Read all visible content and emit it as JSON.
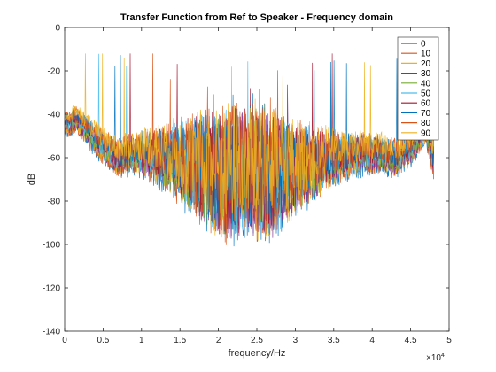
{
  "chart_data": {
    "type": "line",
    "title": "Transfer Function from Ref to Speaker - Frequency domain",
    "xlabel": "frequency/Hz",
    "ylabel": "dB",
    "x_exponent_label": "×10",
    "x_exponent_power": "4",
    "xlim": [
      0,
      50000
    ],
    "ylim": [
      -140,
      0
    ],
    "xticks": [
      0,
      5000,
      10000,
      15000,
      20000,
      25000,
      30000,
      35000,
      40000,
      45000,
      50000
    ],
    "xtick_labels": [
      "0",
      "0.5",
      "1",
      "1.5",
      "2",
      "2.5",
      "3",
      "3.5",
      "4",
      "4.5",
      "5"
    ],
    "yticks": [
      0,
      -20,
      -40,
      -60,
      -80,
      -100,
      -120,
      -140
    ],
    "ytick_labels": [
      "0",
      "-20",
      "-40",
      "-60",
      "-80",
      "-100",
      "-120",
      "-140"
    ],
    "grid": false,
    "legend_position": "top-right",
    "series": [
      {
        "name": "0",
        "color": "#0072BD"
      },
      {
        "name": "10",
        "color": "#D95319"
      },
      {
        "name": "20",
        "color": "#EDB120"
      },
      {
        "name": "30",
        "color": "#7E2F8E"
      },
      {
        "name": "40",
        "color": "#77AC30"
      },
      {
        "name": "50",
        "color": "#4DBEEE"
      },
      {
        "name": "60",
        "color": "#A2142F"
      },
      {
        "name": "70",
        "color": "#0072BD"
      },
      {
        "name": "80",
        "color": "#D95319"
      },
      {
        "name": "90",
        "color": "#EDB120"
      }
    ],
    "envelope": {
      "x": [
        0,
        500,
        1500,
        3000,
        5000,
        7000,
        9000,
        11000,
        13000,
        15000,
        17000,
        19000,
        20000,
        21000,
        22000,
        23000,
        24000,
        25000,
        26000,
        27000,
        28000,
        29000,
        31000,
        33000,
        35000,
        37000,
        39000,
        41000,
        43000,
        45000,
        47000,
        48000
      ],
      "mean": [
        -44,
        -45,
        -42,
        -48,
        -55,
        -60,
        -58,
        -58,
        -60,
        -62,
        -64,
        -66,
        -68,
        -68,
        -67,
        -66,
        -65,
        -66,
        -67,
        -68,
        -68,
        -66,
        -64,
        -62,
        -60,
        -59,
        -58,
        -58,
        -60,
        -56,
        -46,
        -60
      ],
      "spread": [
        2,
        3,
        3,
        4,
        5,
        6,
        7,
        10,
        13,
        18,
        22,
        26,
        28,
        30,
        30,
        28,
        28,
        30,
        30,
        28,
        26,
        22,
        18,
        14,
        10,
        8,
        7,
        6,
        6,
        5,
        4,
        8
      ]
    }
  }
}
